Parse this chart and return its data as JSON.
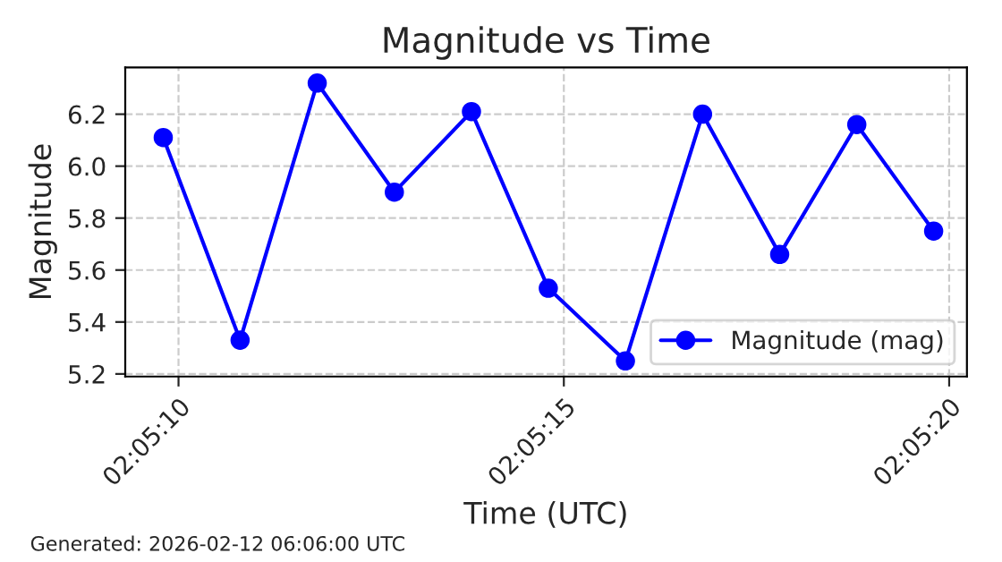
{
  "chart_data": {
    "type": "line",
    "title": "Magnitude vs Time",
    "xlabel": "Time (UTC)",
    "ylabel": "Magnitude",
    "x": [
      2.086056,
      2.086333,
      2.086611,
      2.086889,
      2.087167,
      2.087444,
      2.087722,
      2.088,
      2.088278,
      2.088556,
      2.088833
    ],
    "series": [
      {
        "name": "Magnitude (mag)",
        "color": "#0000ff",
        "values": [
          6.11,
          5.33,
          6.32,
          5.9,
          6.21,
          5.53,
          5.25,
          6.2,
          5.66,
          6.16,
          5.75
        ]
      }
    ],
    "xlim": [
      2.085919,
      2.088953
    ],
    "xticks": [
      {
        "value": 2.086111,
        "label": "02:05:10"
      },
      {
        "value": 2.0875,
        "label": "02:05:15"
      },
      {
        "value": 2.088889,
        "label": "02:05:20"
      }
    ],
    "ylim": [
      5.19,
      6.38
    ],
    "yticks": [
      5.2,
      5.4,
      5.6,
      5.8,
      {
        "value": 6,
        "label": "6.0"
      },
      6.2
    ],
    "grid": true,
    "legend": "bottom right",
    "marker": "circle",
    "line_style": "solid",
    "annotations": [
      "Generated: 2026-02-12 06:06:00 UTC"
    ]
  }
}
